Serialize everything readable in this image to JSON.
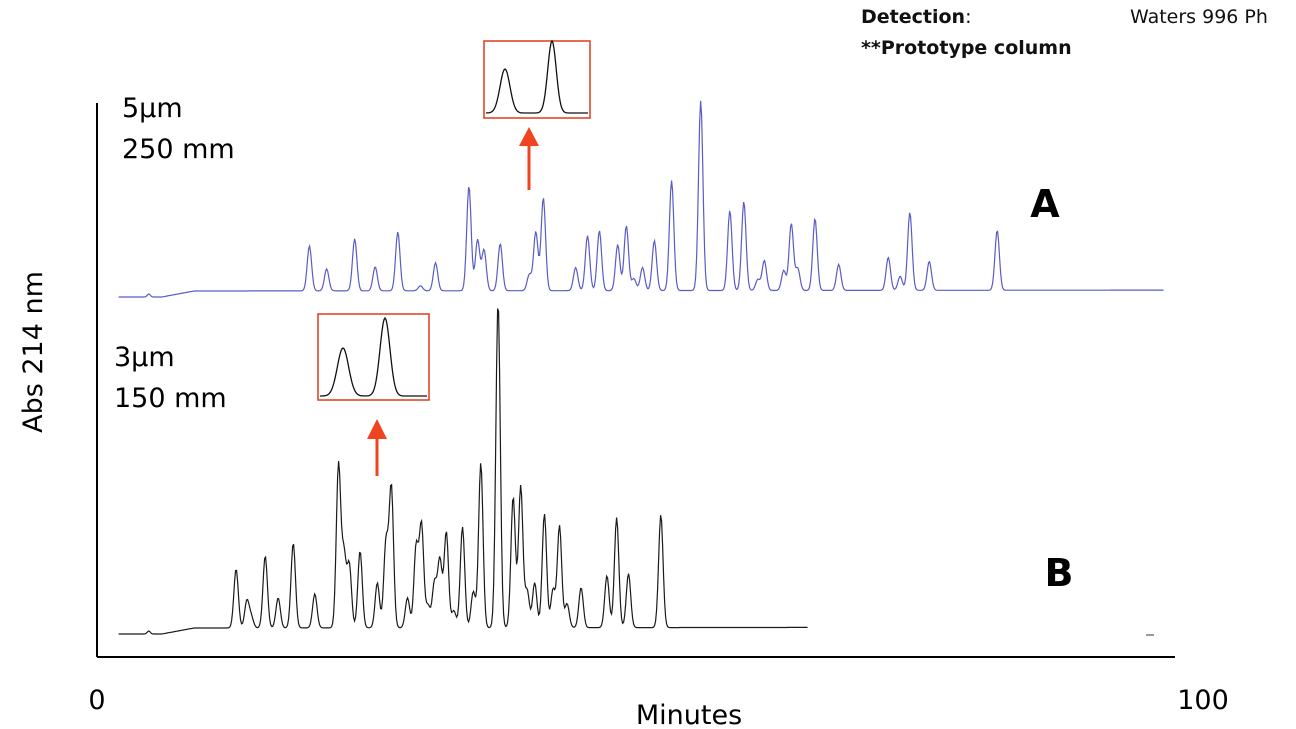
{
  "header": {
    "detection_label": "Detection",
    "detection_colon": ":",
    "detection_value": "Waters 996 Ph",
    "note": "**Prototype column"
  },
  "chart_data": {
    "type": "line",
    "xlabel": "Minutes",
    "ylabel": "Abs 214 nm",
    "xlim": [
      0,
      100
    ],
    "x_ticks": [
      "0",
      "100"
    ],
    "grid": false,
    "colors": {
      "A": "#5a5bc6",
      "B": "#1a1a1a",
      "inset_border": "#e0472a",
      "arrow": "#f0431f"
    },
    "series": [
      {
        "name": "A",
        "label_lines": [
          "5μm",
          "250 mm"
        ],
        "end_x": 99,
        "peaks": [
          {
            "x": 19.7,
            "h": 45
          },
          {
            "x": 21.3,
            "h": 22
          },
          {
            "x": 23.9,
            "h": 52
          },
          {
            "x": 25.8,
            "h": 24
          },
          {
            "x": 27.9,
            "h": 59
          },
          {
            "x": 30.0,
            "h": 5
          },
          {
            "x": 31.4,
            "h": 28
          },
          {
            "x": 34.5,
            "h": 105
          },
          {
            "x": 35.3,
            "h": 51
          },
          {
            "x": 35.9,
            "h": 41
          },
          {
            "x": 37.4,
            "h": 47
          },
          {
            "x": 40.1,
            "h": 16
          },
          {
            "x": 40.7,
            "h": 59
          },
          {
            "x": 41.4,
            "h": 93
          },
          {
            "x": 44.4,
            "h": 23
          },
          {
            "x": 45.5,
            "h": 55
          },
          {
            "x": 46.6,
            "h": 60
          },
          {
            "x": 48.3,
            "h": 46
          },
          {
            "x": 49.1,
            "h": 65
          },
          {
            "x": 49.8,
            "h": 12
          },
          {
            "x": 50.6,
            "h": 23
          },
          {
            "x": 51.7,
            "h": 50
          },
          {
            "x": 53.3,
            "h": 110
          },
          {
            "x": 56.0,
            "h": 190
          },
          {
            "x": 58.7,
            "h": 80
          },
          {
            "x": 60.0,
            "h": 89
          },
          {
            "x": 61.3,
            "h": 11
          },
          {
            "x": 61.9,
            "h": 30
          },
          {
            "x": 63.7,
            "h": 20
          },
          {
            "x": 64.4,
            "h": 67
          },
          {
            "x": 65.0,
            "h": 22
          },
          {
            "x": 66.6,
            "h": 72
          },
          {
            "x": 68.8,
            "h": 26
          },
          {
            "x": 73.4,
            "h": 33
          },
          {
            "x": 74.5,
            "h": 14
          },
          {
            "x": 75.4,
            "h": 78
          },
          {
            "x": 77.2,
            "h": 29
          },
          {
            "x": 83.5,
            "h": 60
          }
        ]
      },
      {
        "name": "B",
        "label_lines": [
          "3μm",
          "150 mm"
        ],
        "end_x": 66,
        "peaks": [
          {
            "x": 12.9,
            "h": 59
          },
          {
            "x": 13.9,
            "h": 27
          },
          {
            "x": 14.3,
            "h": 11
          },
          {
            "x": 15.6,
            "h": 72
          },
          {
            "x": 16.8,
            "h": 30
          },
          {
            "x": 18.2,
            "h": 85
          },
          {
            "x": 20.2,
            "h": 34
          },
          {
            "x": 22.4,
            "h": 163
          },
          {
            "x": 22.9,
            "h": 72
          },
          {
            "x": 23.4,
            "h": 63
          },
          {
            "x": 24.4,
            "h": 77
          },
          {
            "x": 26.0,
            "h": 45
          },
          {
            "x": 26.8,
            "h": 85
          },
          {
            "x": 27.3,
            "h": 141
          },
          {
            "x": 28.8,
            "h": 30
          },
          {
            "x": 29.6,
            "h": 81
          },
          {
            "x": 30.1,
            "h": 103
          },
          {
            "x": 30.7,
            "h": 22
          },
          {
            "x": 31.3,
            "h": 45
          },
          {
            "x": 31.8,
            "h": 68
          },
          {
            "x": 32.4,
            "h": 96
          },
          {
            "x": 33.1,
            "h": 17
          },
          {
            "x": 33.9,
            "h": 101
          },
          {
            "x": 34.9,
            "h": 36
          },
          {
            "x": 35.6,
            "h": 165
          },
          {
            "x": 37.2,
            "h": 326
          },
          {
            "x": 38.6,
            "h": 131
          },
          {
            "x": 39.3,
            "h": 142
          },
          {
            "x": 39.9,
            "h": 37
          },
          {
            "x": 40.6,
            "h": 45
          },
          {
            "x": 41.5,
            "h": 114
          },
          {
            "x": 42.3,
            "h": 38
          },
          {
            "x": 42.9,
            "h": 102
          },
          {
            "x": 43.6,
            "h": 24
          },
          {
            "x": 44.9,
            "h": 40
          },
          {
            "x": 47.3,
            "h": 52
          },
          {
            "x": 48.2,
            "h": 110
          },
          {
            "x": 49.3,
            "h": 54
          },
          {
            "x": 52.3,
            "h": 113
          }
        ]
      }
    ]
  }
}
